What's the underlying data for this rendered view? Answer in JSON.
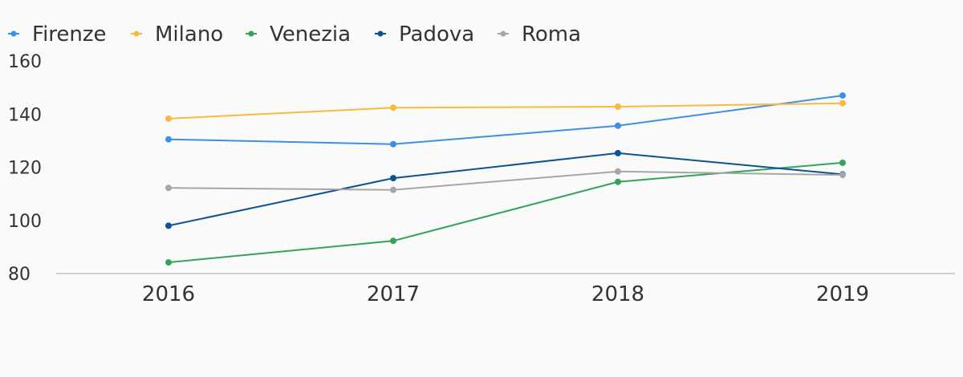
{
  "chart_data": {
    "type": "line",
    "categories": [
      "2016",
      "2017",
      "2018",
      "2019"
    ],
    "series": [
      {
        "name": "Firenze",
        "color": "#3c8fe6",
        "values": [
          130.5,
          128.7,
          135.6,
          147.0
        ]
      },
      {
        "name": "Milano",
        "color": "#f7b940",
        "values": [
          138.3,
          142.4,
          142.8,
          144.1
        ]
      },
      {
        "name": "Venezia",
        "color": "#33a35a",
        "values": [
          84.2,
          92.3,
          114.5,
          121.7
        ]
      },
      {
        "name": "Padova",
        "color": "#0b5394",
        "values": [
          98.0,
          115.9,
          125.3,
          117.3
        ]
      },
      {
        "name": "Roma",
        "color": "#a6a6a6",
        "values": [
          112.2,
          111.5,
          118.4,
          117.1
        ]
      }
    ],
    "yticks": [
      80,
      100,
      120,
      140,
      160
    ],
    "ylim": [
      80,
      160
    ],
    "legend_position": "top-left",
    "grid": false
  }
}
